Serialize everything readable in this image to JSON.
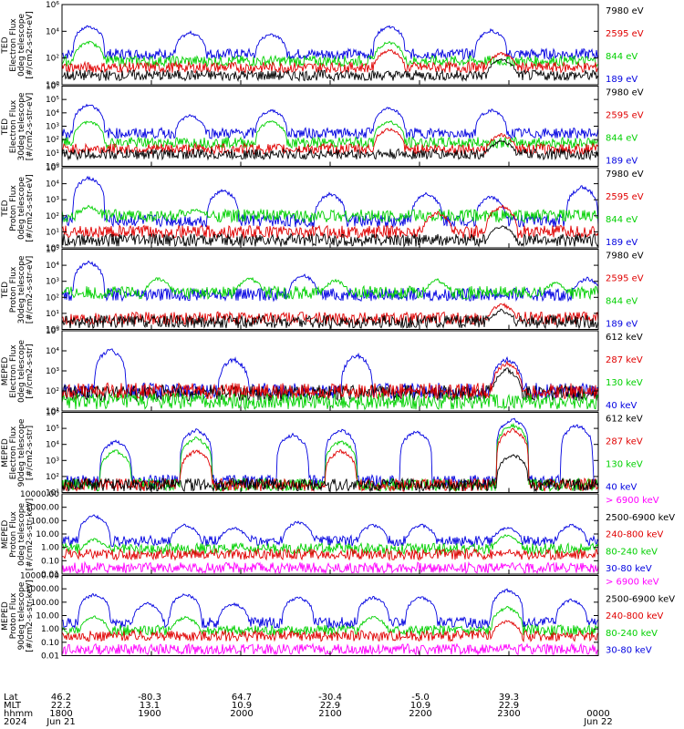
{
  "colors": {
    "black": "#000000",
    "red": "#e00000",
    "green": "#00d000",
    "blue": "#0000e0",
    "magenta": "#ff00ff"
  },
  "footer": {
    "row_labels": [
      "Lat",
      "MLT",
      "hhmm",
      "2024"
    ],
    "ticks": [
      {
        "lat": "46.2",
        "mlt": "22.2",
        "hhmm": "1800",
        "date": "Jun 21"
      },
      {
        "lat": "-80.3",
        "mlt": "13.1",
        "hhmm": "1900",
        "date": ""
      },
      {
        "lat": "64.7",
        "mlt": "10.9",
        "hhmm": "2000",
        "date": ""
      },
      {
        "lat": "-30.4",
        "mlt": "22.9",
        "hhmm": "2100",
        "date": ""
      },
      {
        "lat": "-5.0",
        "mlt": "10.9",
        "hhmm": "2200",
        "date": ""
      },
      {
        "lat": "39.3",
        "mlt": "22.9",
        "hhmm": "2300",
        "date": ""
      },
      {
        "lat": "",
        "mlt": "",
        "hhmm": "0000",
        "date": "Jun 22"
      }
    ]
  },
  "chart_data": [
    {
      "type": "line",
      "ylabel": [
        "TED",
        "Electron Flux",
        "0deg telescope",
        "[#/cm2-s-str-eV]"
      ],
      "yscale": "log",
      "ylim": [
        1,
        1000000
      ],
      "ytick_labels": [
        "10⁰",
        "10²",
        "10⁴",
        "10⁶"
      ],
      "legend": [
        {
          "text": "7980 eV",
          "color": "black"
        },
        {
          "text": "2595 eV",
          "color": "red"
        },
        {
          "text": "844 eV",
          "color": "green"
        },
        {
          "text": "189 eV",
          "color": "blue"
        }
      ],
      "series": [
        {
          "color": "blue",
          "base": 200,
          "peaks": [
            [
              0.05,
              30000
            ],
            [
              0.24,
              10000
            ],
            [
              0.39,
              8000
            ],
            [
              0.61,
              30000
            ],
            [
              0.8,
              15000
            ]
          ]
        },
        {
          "color": "green",
          "base": 60,
          "peaks": [
            [
              0.05,
              2000
            ],
            [
              0.61,
              2000
            ]
          ]
        },
        {
          "color": "red",
          "base": 20,
          "peaks": [
            [
              0.61,
              500
            ],
            [
              0.82,
              300
            ]
          ]
        },
        {
          "color": "black",
          "base": 5,
          "peaks": [
            [
              0.82,
              100
            ]
          ]
        }
      ]
    },
    {
      "type": "line",
      "ylabel": [
        "TED",
        "Electron Flux",
        "30deg telescope",
        "[#/cm2-s-str-eV]"
      ],
      "yscale": "log",
      "ylim": [
        1,
        1000000
      ],
      "ytick_labels": [
        "10⁰",
        "10¹",
        "10²",
        "10³",
        "10⁴",
        "10⁵",
        "10⁶"
      ],
      "legend": [
        {
          "text": "7980 eV",
          "color": "black"
        },
        {
          "text": "2595 eV",
          "color": "red"
        },
        {
          "text": "844 eV",
          "color": "green"
        },
        {
          "text": "189 eV",
          "color": "blue"
        }
      ],
      "series": [
        {
          "color": "blue",
          "base": 300,
          "peaks": [
            [
              0.05,
              50000
            ],
            [
              0.24,
              8000
            ],
            [
              0.39,
              20000
            ],
            [
              0.61,
              30000
            ],
            [
              0.8,
              20000
            ]
          ]
        },
        {
          "color": "green",
          "base": 60,
          "peaks": [
            [
              0.05,
              3000
            ],
            [
              0.39,
              3000
            ],
            [
              0.61,
              3000
            ]
          ]
        },
        {
          "color": "red",
          "base": 20,
          "peaks": [
            [
              0.61,
              800
            ],
            [
              0.82,
              300
            ]
          ]
        },
        {
          "color": "black",
          "base": 8,
          "peaks": [
            [
              0.82,
              100
            ]
          ]
        }
      ]
    },
    {
      "type": "line",
      "ylabel": [
        "TED",
        "Proton Flux",
        "0deg telescope",
        "[#/cm2-s-str-eV]"
      ],
      "yscale": "log",
      "ylim": [
        1,
        100000
      ],
      "ytick_labels": [
        "10⁰",
        "10¹",
        "10²",
        "10³",
        "10⁴",
        "10⁵"
      ],
      "legend": [
        {
          "text": "7980 eV",
          "color": "black"
        },
        {
          "text": "2595 eV",
          "color": "red"
        },
        {
          "text": "844 eV",
          "color": "green"
        },
        {
          "text": "189 eV",
          "color": "blue"
        }
      ],
      "series": [
        {
          "color": "blue",
          "base": 50,
          "peaks": [
            [
              0.05,
              30000
            ],
            [
              0.3,
              5000
            ],
            [
              0.5,
              3000
            ],
            [
              0.68,
              3000
            ],
            [
              0.8,
              2000
            ],
            [
              0.97,
              8000
            ]
          ]
        },
        {
          "color": "green",
          "base": 100,
          "peaks": [
            [
              0.05,
              500
            ],
            [
              0.25,
              300
            ]
          ]
        },
        {
          "color": "red",
          "base": 10,
          "peaks": [
            [
              0.7,
              200
            ],
            [
              0.82,
              500
            ]
          ]
        },
        {
          "color": "black",
          "base": 3,
          "peaks": [
            [
              0.82,
              30
            ]
          ]
        }
      ]
    },
    {
      "type": "line",
      "ylabel": [
        "TED",
        "Proton Flux",
        "30deg telescope",
        "[#/cm2-s-str-eV]"
      ],
      "yscale": "log",
      "ylim": [
        1,
        100000
      ],
      "ytick_labels": [
        "10⁰",
        "10¹",
        "10²",
        "10³",
        "10⁴",
        "10⁵"
      ],
      "legend": [
        {
          "text": "7980 eV",
          "color": "black"
        },
        {
          "text": "2595 eV",
          "color": "red"
        },
        {
          "text": "844 eV",
          "color": "green"
        },
        {
          "text": "189 eV",
          "color": "blue"
        }
      ],
      "series": [
        {
          "color": "blue",
          "base": 150,
          "peaks": [
            [
              0.05,
              20000
            ],
            [
              0.45,
              3000
            ],
            [
              0.98,
              2000
            ]
          ]
        },
        {
          "color": "green",
          "base": 200,
          "peaks": [
            [
              0.18,
              2000
            ],
            [
              0.35,
              2000
            ],
            [
              0.51,
              1500
            ],
            [
              0.7,
              1500
            ],
            [
              0.92,
              1000
            ]
          ]
        },
        {
          "color": "red",
          "base": 5,
          "peaks": [
            [
              0.82,
              50
            ]
          ]
        },
        {
          "color": "black",
          "base": 3,
          "peaks": [
            [
              0.82,
              20
            ]
          ]
        }
      ]
    },
    {
      "type": "line",
      "ylabel": [
        "MEPED",
        "Electron Flux",
        "0deg telescope",
        "[#/cm2-s-str]"
      ],
      "yscale": "log",
      "ylim": [
        10,
        100000
      ],
      "ytick_labels": [
        "10¹",
        "10²",
        "10³",
        "10⁴",
        "10⁵"
      ],
      "legend": [
        {
          "text": "612 keV",
          "color": "black"
        },
        {
          "text": "287 keV",
          "color": "red"
        },
        {
          "text": "130 keV",
          "color": "green"
        },
        {
          "text": "40 keV",
          "color": "blue"
        }
      ],
      "series": [
        {
          "color": "blue",
          "base": 100,
          "peaks": [
            [
              0.09,
              15000
            ],
            [
              0.32,
              5000
            ],
            [
              0.55,
              8000
            ],
            [
              0.83,
              5000
            ]
          ]
        },
        {
          "color": "black",
          "base": 80,
          "peaks": [
            [
              0.83,
              1500
            ]
          ]
        },
        {
          "color": "red",
          "base": 100,
          "peaks": [
            [
              0.83,
              3000
            ]
          ]
        },
        {
          "color": "green",
          "base": 30,
          "peaks": []
        }
      ]
    },
    {
      "type": "line",
      "ylabel": [
        "MEPED",
        "Electron Flux",
        "90deg telescope",
        "[#/cm2-s-str]"
      ],
      "yscale": "log",
      "ylim": [
        10,
        1000000
      ],
      "ytick_labels": [
        "10¹",
        "10²",
        "10³",
        "10⁴",
        "10⁵",
        "10⁶"
      ],
      "legend": [
        {
          "text": "612 keV",
          "color": "black"
        },
        {
          "text": "287 keV",
          "color": "red"
        },
        {
          "text": "130 keV",
          "color": "green"
        },
        {
          "text": "40 keV",
          "color": "blue"
        }
      ],
      "series": [
        {
          "color": "blue",
          "base": 50,
          "peaks": [
            [
              0.1,
              20000
            ],
            [
              0.25,
              100000
            ],
            [
              0.43,
              50000
            ],
            [
              0.52,
              100000
            ],
            [
              0.66,
              80000
            ],
            [
              0.84,
              500000
            ],
            [
              0.96,
              200000
            ]
          ]
        },
        {
          "color": "green",
          "base": 30,
          "peaks": [
            [
              0.1,
              5000
            ],
            [
              0.25,
              30000
            ],
            [
              0.52,
              20000
            ],
            [
              0.84,
              200000
            ]
          ]
        },
        {
          "color": "red",
          "base": 30,
          "peaks": [
            [
              0.25,
              5000
            ],
            [
              0.52,
              5000
            ],
            [
              0.84,
              100000
            ]
          ]
        },
        {
          "color": "black",
          "base": 30,
          "peaks": [
            [
              0.84,
              3000
            ]
          ]
        }
      ]
    },
    {
      "type": "line",
      "ylabel": [
        "MEPED",
        "Proton Flux",
        "0deg telescope",
        "[#/cm2-s-str-keV]"
      ],
      "yscale": "log",
      "ylim": [
        0.01,
        10000
      ],
      "ytick_labels": [
        "0.01",
        "0.10",
        "1.00",
        "10.00",
        "100.00",
        "1000.00",
        "10000.00"
      ],
      "legend": [
        {
          "text": "> 6900 keV",
          "color": "magenta"
        },
        {
          "text": "2500-6900 keV",
          "color": "black"
        },
        {
          "text": "240-800 keV",
          "color": "red"
        },
        {
          "text": "80-240 keV",
          "color": "green"
        },
        {
          "text": "30-80 keV",
          "color": "blue"
        }
      ],
      "series": [
        {
          "color": "blue",
          "base": 3,
          "peaks": [
            [
              0.06,
              300
            ],
            [
              0.23,
              60
            ],
            [
              0.32,
              40
            ],
            [
              0.44,
              100
            ],
            [
              0.58,
              60
            ],
            [
              0.67,
              60
            ],
            [
              0.83,
              40
            ],
            [
              0.95,
              60
            ]
          ]
        },
        {
          "color": "green",
          "base": 0.8,
          "peaks": [
            [
              0.06,
              5
            ],
            [
              0.83,
              10
            ]
          ]
        },
        {
          "color": "red",
          "base": 0.3,
          "peaks": [
            [
              0.83,
              0.5
            ]
          ]
        },
        {
          "color": "magenta",
          "base": 0.03,
          "peaks": [
            [
              0.83,
              0.05
            ]
          ]
        }
      ]
    },
    {
      "type": "line",
      "ylabel": [
        "MEPED",
        "Proton Flux",
        "90deg telescope",
        "[#/cm2-s-str-keV]"
      ],
      "yscale": "log",
      "ylim": [
        0.01,
        10000
      ],
      "ytick_labels": [
        "0.01",
        "0.10",
        "1.00",
        "10.00",
        "100.00",
        "1000.00",
        "10000.00"
      ],
      "legend": [
        {
          "text": "> 6900 keV",
          "color": "magenta"
        },
        {
          "text": "2500-6900 keV",
          "color": "black"
        },
        {
          "text": "240-800 keV",
          "color": "red"
        },
        {
          "text": "80-240 keV",
          "color": "green"
        },
        {
          "text": "30-80 keV",
          "color": "blue"
        }
      ],
      "series": [
        {
          "color": "blue",
          "base": 3,
          "peaks": [
            [
              0.06,
              500
            ],
            [
              0.16,
              100
            ],
            [
              0.23,
              500
            ],
            [
              0.32,
              100
            ],
            [
              0.44,
              300
            ],
            [
              0.58,
              300
            ],
            [
              0.67,
              300
            ],
            [
              0.83,
              1000
            ],
            [
              0.95,
              200
            ]
          ]
        },
        {
          "color": "green",
          "base": 0.8,
          "peaks": [
            [
              0.06,
              10
            ],
            [
              0.23,
              10
            ],
            [
              0.58,
              10
            ],
            [
              0.83,
              50
            ]
          ]
        },
        {
          "color": "red",
          "base": 0.3,
          "peaks": [
            [
              0.83,
              5
            ]
          ]
        },
        {
          "color": "magenta",
          "base": 0.03,
          "peaks": [
            [
              0.83,
              0.05
            ]
          ]
        }
      ]
    }
  ]
}
